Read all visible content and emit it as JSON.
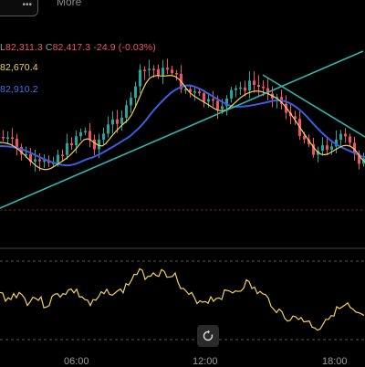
{
  "header": {
    "dots_label": "•••",
    "more_label": "More"
  },
  "legend": {
    "ohlc": {
      "l_label": "L",
      "l_value": "82,311.3",
      "c_label": "C",
      "c_value": "82,417.3",
      "change": "-24.9 (-0.03%)"
    },
    "ma_fast": "82,670.4",
    "ma_slow": "82,910.2"
  },
  "time_axis": {
    "labels": [
      "06:00",
      "12:00",
      "18:00"
    ]
  },
  "colors": {
    "up": "#26a69a",
    "down": "#ef5360",
    "ma_fast": "#f2d25a",
    "ma_slow": "#3b5ee0",
    "trendline": "#33b4ae",
    "rsi": "#f2d25a"
  }
}
